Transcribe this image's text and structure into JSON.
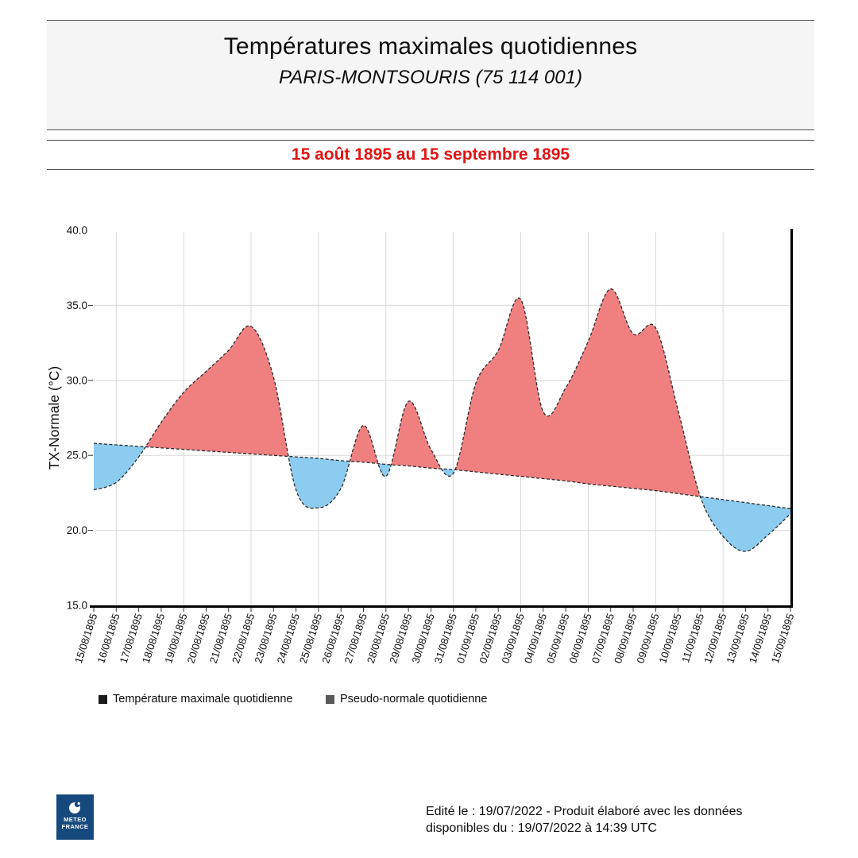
{
  "header": {
    "title": "Températures maximales quotidiennes",
    "subtitle": "PARIS-MONTSOURIS (75 114 001)"
  },
  "period": {
    "label": "15 août 1895 au 15 septembre 1895",
    "color": "#e01515"
  },
  "chart_data": {
    "type": "area",
    "title": "Températures maximales quotidiennes",
    "station": "PARIS-MONTSOURIS (75 114 001)",
    "ylabel": "TX-Normale (°C)",
    "ylim": [
      15.0,
      40.0
    ],
    "ytick_step": 5,
    "grid": true,
    "x_grid_every": 3,
    "x_grid_start": 1,
    "x": [
      "15/08/1895",
      "16/08/1895",
      "17/08/1895",
      "18/08/1895",
      "19/08/1895",
      "20/08/1895",
      "21/08/1895",
      "22/08/1895",
      "23/08/1895",
      "24/08/1895",
      "25/08/1895",
      "26/08/1895",
      "27/08/1895",
      "28/08/1895",
      "29/08/1895",
      "30/08/1895",
      "31/08/1895",
      "01/09/1895",
      "02/09/1895",
      "03/09/1895",
      "04/09/1895",
      "05/09/1895",
      "06/09/1895",
      "07/09/1895",
      "08/09/1895",
      "09/09/1895",
      "10/09/1895",
      "11/09/1895",
      "12/09/1895",
      "13/09/1895",
      "14/09/1895",
      "15/09/1895"
    ],
    "series": [
      {
        "name": "Température maximale quotidienne",
        "legend_swatch": "#1a1a1a",
        "values": [
          22.7,
          23.2,
          24.9,
          27.2,
          29.2,
          30.6,
          32.0,
          33.6,
          30.2,
          22.7,
          21.5,
          22.8,
          27.0,
          23.6,
          28.6,
          25.4,
          23.8,
          29.8,
          32.0,
          35.4,
          27.9,
          29.5,
          32.6,
          36.1,
          33.1,
          33.5,
          28.0,
          22.2,
          19.6,
          18.6,
          19.7,
          21.1
        ]
      },
      {
        "name": "Pseudo-normale quotidienne",
        "legend_swatch": "#595959",
        "values": [
          25.8,
          25.7,
          25.6,
          25.5,
          25.4,
          25.3,
          25.2,
          25.1,
          25.0,
          24.9,
          24.8,
          24.65,
          24.55,
          24.4,
          24.3,
          24.15,
          24.05,
          23.9,
          23.75,
          23.6,
          23.45,
          23.3,
          23.1,
          22.95,
          22.8,
          22.65,
          22.45,
          22.25,
          22.05,
          21.85,
          21.65,
          21.45
        ]
      }
    ],
    "fill_above_color": "#F08080",
    "fill_below_color": "#8CCCF0",
    "line_color": "#2b2b2b",
    "grid_color": "#d9d9d9"
  },
  "footer": {
    "line1": "Edité le : 19/07/2022 - Produit élaboré avec les données",
    "line2": "disponibles du : 19/07/2022 à 14:39 UTC"
  },
  "logo": {
    "line1": "METEO",
    "line2": "FRANCE",
    "color": "#164a7e"
  }
}
